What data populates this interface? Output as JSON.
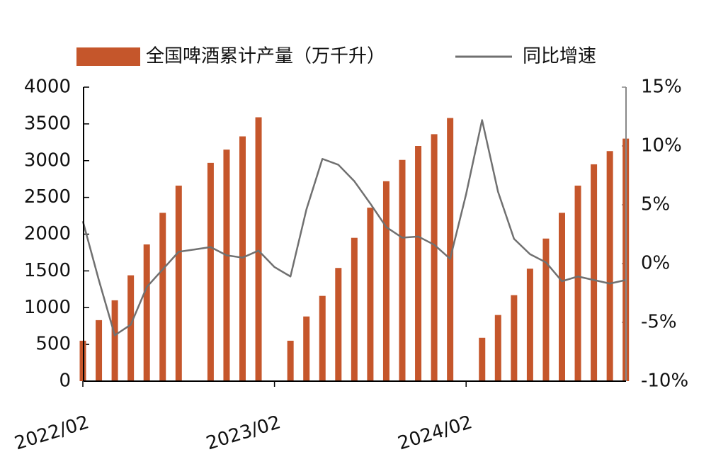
{
  "chart_data": {
    "type": "bar",
    "categories": [
      "2022/02",
      null,
      null,
      null,
      null,
      null,
      null,
      null,
      null,
      null,
      null,
      null,
      "2023/02",
      null,
      null,
      null,
      null,
      null,
      null,
      null,
      null,
      null,
      null,
      null,
      "2024/02",
      null,
      null,
      null,
      null,
      null,
      null,
      null,
      null,
      null,
      null
    ],
    "series": [
      {
        "name": "全国啤酒累计产量（万千升）",
        "type": "bar",
        "color": "#c5562b",
        "values": [
          550,
          830,
          1100,
          1440,
          1860,
          2290,
          2660,
          null,
          2970,
          3150,
          3330,
          3590,
          null,
          550,
          880,
          1160,
          1540,
          1950,
          2360,
          2720,
          3010,
          3200,
          3360,
          3580,
          null,
          590,
          900,
          1170,
          1530,
          1940,
          2290,
          2660,
          2950,
          3130,
          3300
        ]
      },
      {
        "name": "同比增速",
        "type": "line",
        "axis": "y2",
        "color": "#707070",
        "values": [
          3.6,
          -1.4,
          -6.1,
          -5.2,
          -2.0,
          -0.5,
          1.0,
          1.2,
          1.4,
          0.7,
          0.5,
          1.1,
          -0.3,
          -1.1,
          4.6,
          8.9,
          8.4,
          7.0,
          5.1,
          3.1,
          2.2,
          2.3,
          1.6,
          0.4,
          5.9,
          12.2,
          6.1,
          2.1,
          0.8,
          0.1,
          -1.5,
          -1.1,
          -1.4,
          -1.7,
          -1.4
        ]
      }
    ],
    "ylim": [
      0,
      4000
    ],
    "yticks": [
      0,
      500,
      1000,
      1500,
      2000,
      2500,
      3000,
      3500,
      4000
    ],
    "y2lim": [
      -10,
      15
    ],
    "y2ticks": [
      {
        "value": -10,
        "label": "-10%"
      },
      {
        "value": -5,
        "label": "-5%"
      },
      {
        "value": 0,
        "label": "0%"
      },
      {
        "value": 5,
        "label": "5%"
      },
      {
        "value": 10,
        "label": "10%"
      },
      {
        "value": 15,
        "label": "15%"
      }
    ],
    "legend": "top",
    "grid": false
  }
}
